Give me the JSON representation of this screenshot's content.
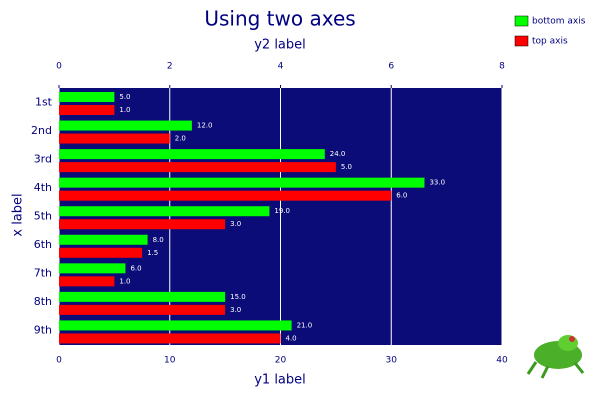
{
  "chart_data": {
    "type": "barh",
    "title": "Using two axes",
    "xlabel": "x label",
    "ylabel": "y1 label",
    "y2label": "y2 label",
    "categories": [
      "1st",
      "2nd",
      "3rd",
      "4th",
      "5th",
      "6th",
      "7th",
      "8th",
      "9th"
    ],
    "series": [
      {
        "name": "bottom axis",
        "color": "#00ff00",
        "axis": "y",
        "values": [
          5,
          12,
          24,
          33,
          19,
          8,
          6,
          15,
          21
        ],
        "value_labels": [
          "5.0",
          "12.0",
          "24.0",
          "33.0",
          "19.0",
          "8.0",
          "6.0",
          "15.0",
          "21.0"
        ]
      },
      {
        "name": "top axis",
        "color": "#ff0000",
        "axis": "y2",
        "values": [
          1,
          2,
          5,
          6,
          3,
          1.5,
          1,
          3,
          4
        ],
        "value_labels": [
          "1.0",
          "2.0",
          "5.0",
          "6.0",
          "3.0",
          "1.5",
          "1.0",
          "3.0",
          "4.0"
        ]
      }
    ],
    "ylim": [
      0,
      40
    ],
    "yticks": [
      0,
      10,
      20,
      30,
      40
    ],
    "y2lim": [
      0,
      8
    ],
    "y2ticks": [
      0,
      2,
      4,
      6,
      8
    ],
    "grid": true,
    "plot_background": "#0c0c78",
    "legend_position": "top-right"
  }
}
